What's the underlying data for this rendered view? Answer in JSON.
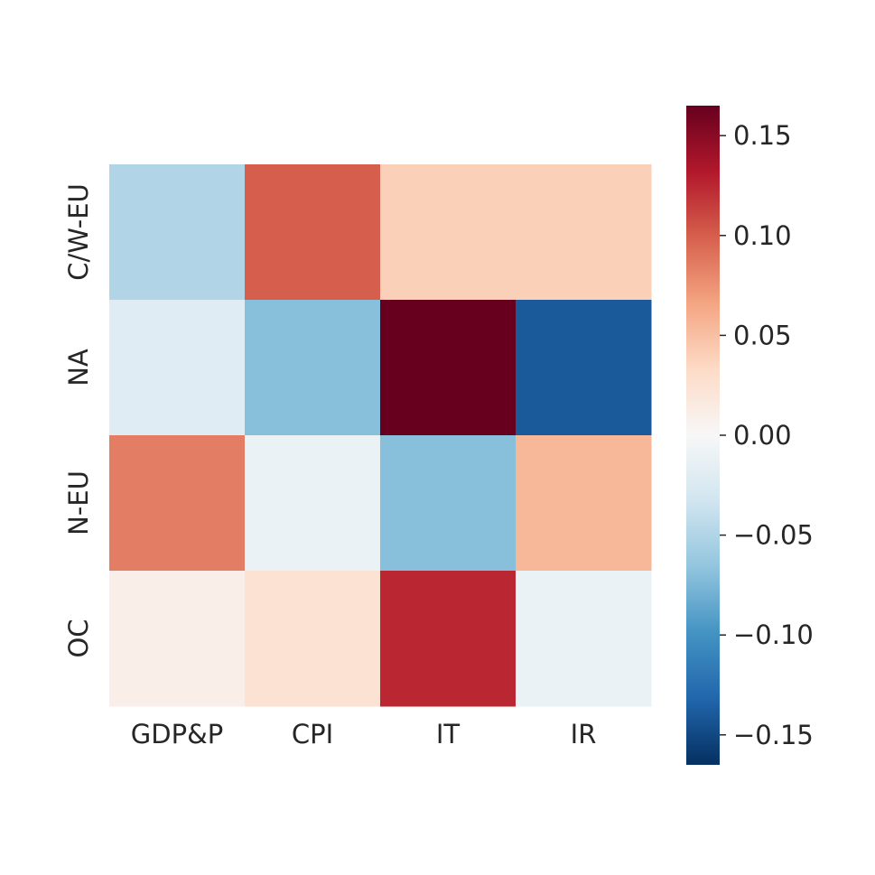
{
  "chart_data": {
    "type": "heatmap",
    "title": "",
    "xlabel": "",
    "ylabel": "",
    "x_categories": [
      "GDP&P",
      "CPI",
      "IT",
      "IR"
    ],
    "y_categories": [
      "C/W-EU",
      "NA",
      "N-EU",
      "OC"
    ],
    "values": [
      [
        -0.05,
        0.1,
        0.04,
        0.04
      ],
      [
        -0.02,
        -0.07,
        0.17,
        -0.14
      ],
      [
        0.085,
        -0.01,
        -0.07,
        0.055
      ],
      [
        0.01,
        0.025,
        0.125,
        -0.01
      ]
    ],
    "colormap": "RdBu_r",
    "vmin": -0.165,
    "vmax": 0.165,
    "colorbar": {
      "ticks": [
        0.15,
        0.1,
        0.05,
        0.0,
        -0.05,
        -0.1,
        -0.15
      ],
      "tick_labels": [
        "0.15",
        "0.10",
        "0.05",
        "0.00",
        "−0.05",
        "−0.10",
        "−0.15"
      ],
      "position": "right"
    },
    "grid": false
  }
}
